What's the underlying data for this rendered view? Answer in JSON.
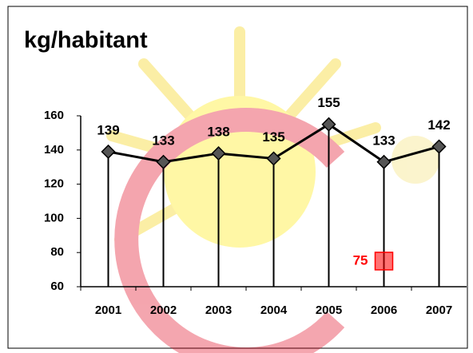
{
  "chart_data": {
    "type": "line",
    "title": "kg/habitant",
    "categories": [
      "2001",
      "2002",
      "2003",
      "2004",
      "2005",
      "2006",
      "2007"
    ],
    "series": [
      {
        "color": "#000000",
        "values": [
          139,
          133,
          138,
          135,
          155,
          133,
          142
        ]
      },
      {
        "color": "#ff0000",
        "values": [
          null,
          null,
          null,
          null,
          null,
          75,
          null
        ]
      }
    ],
    "ylim": [
      60,
      160
    ],
    "yticks": [
      60,
      80,
      100,
      120,
      140,
      160
    ]
  }
}
